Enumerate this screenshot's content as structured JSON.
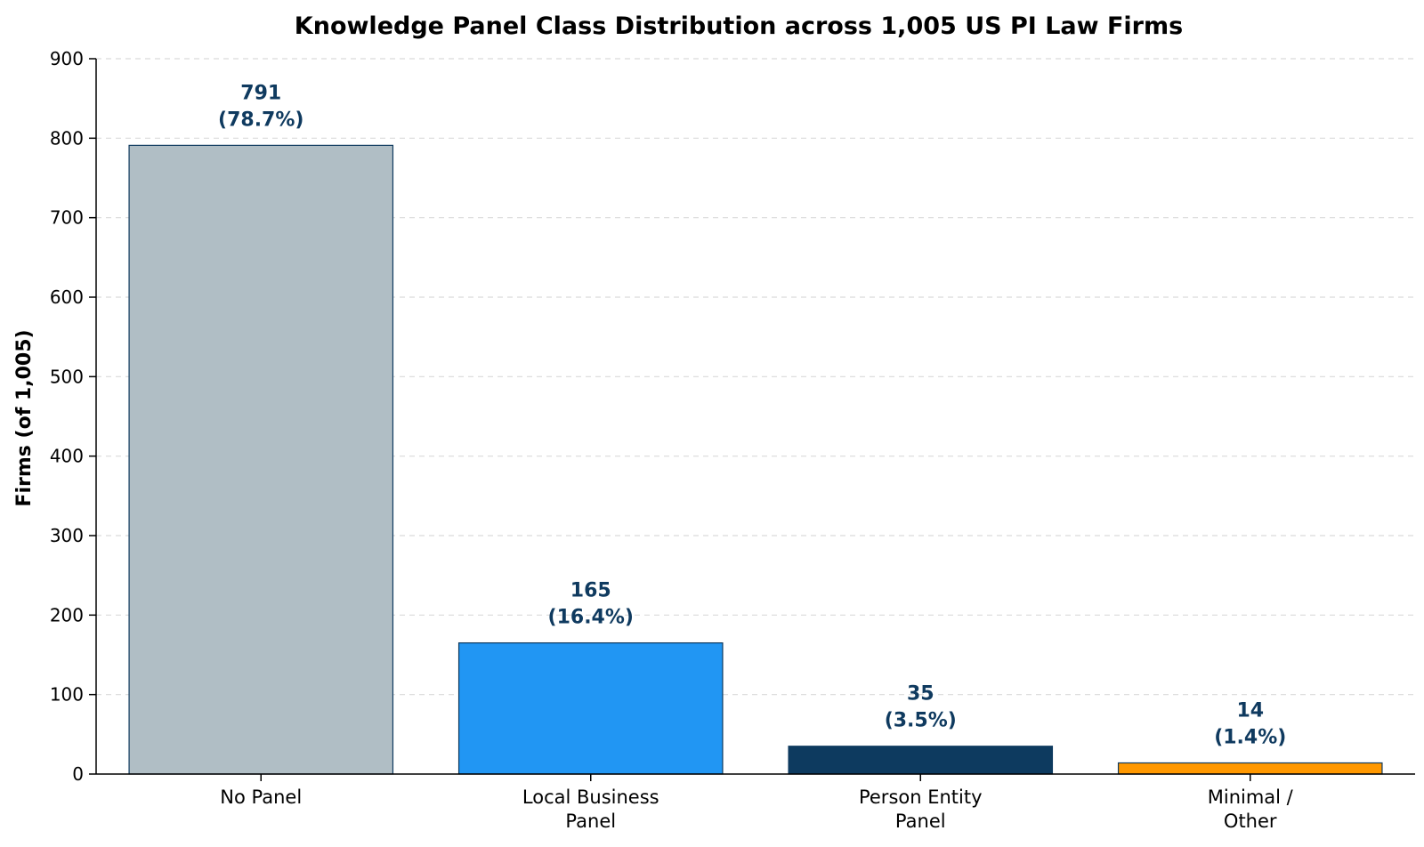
{
  "chart_data": {
    "type": "bar",
    "title": "Knowledge Panel Class Distribution across 1,005 US PI Law Firms",
    "xlabel": "",
    "ylabel": "Firms (of 1,005)",
    "ylim": [
      0,
      900
    ],
    "yticks": [
      0,
      100,
      200,
      300,
      400,
      500,
      600,
      700,
      800,
      900
    ],
    "grid": true,
    "categories": [
      [
        "No Panel"
      ],
      [
        "Local Business",
        "Panel"
      ],
      [
        "Person Entity",
        "Panel"
      ],
      [
        "Minimal /",
        "Other"
      ]
    ],
    "values": [
      791,
      165,
      35,
      14
    ],
    "percent_labels": [
      "(78.7%)",
      "(16.4%)",
      "(3.5%)",
      "(1.4%)"
    ],
    "colors": [
      "#b0bec5",
      "#2196f3",
      "#0d3a5f",
      "#ff9800"
    ]
  }
}
